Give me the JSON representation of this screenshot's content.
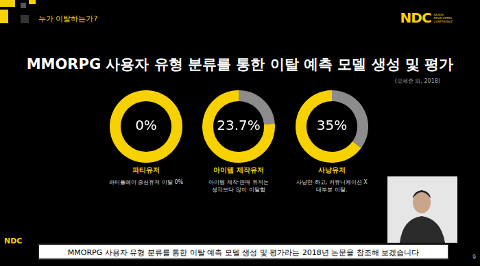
{
  "slide": {
    "section": "누가 이탈하는가?",
    "logo": "NDC",
    "logo_subtitle": [
      "NEXON",
      "DEVELOPERS",
      "CONFERENCE"
    ],
    "title": "MMORPG 사용자 유형 분류를 통한 이탈 예측 모델 생성 및 평가",
    "source": "(오세준 외, 2018)",
    "caption": "MMORPG 사용자 유형 분류를 통한 이탈 예측 모델 생성 및 평가라는 2018년 논문을 참조해 보겠습니다",
    "page": 9
  },
  "chart_data": [
    {
      "type": "doughnut",
      "title": "파티유저",
      "subtitle": [
        "파티플레이 중심유저 이탈 0%"
      ],
      "categories": [
        null,
        null
      ],
      "values": [
        0,
        100
      ],
      "value_labels": [
        "0%",
        null
      ],
      "colors": [
        "#8c8c8c",
        "#f7d100"
      ]
    },
    {
      "type": "doughnut",
      "title": "아이템 제작유저",
      "subtitle": [
        "아이템 제작·판매 유저는",
        "생각보다 많이 이탈함"
      ],
      "categories": [
        null,
        null
      ],
      "values": [
        23.7,
        76.3
      ],
      "value_labels": [
        "23.7%",
        null
      ],
      "colors": [
        "#8c8c8c",
        "#f7d100"
      ]
    },
    {
      "type": "doughnut",
      "title": "사냥유저",
      "subtitle": [
        "사냥만 하고, 커뮤니케이션 X",
        "대부분 이탈."
      ],
      "categories": [
        null,
        null
      ],
      "values": [
        35,
        65
      ],
      "value_labels": [
        "35%",
        null
      ],
      "colors": [
        "#8c8c8c",
        "#f7d100"
      ]
    }
  ]
}
